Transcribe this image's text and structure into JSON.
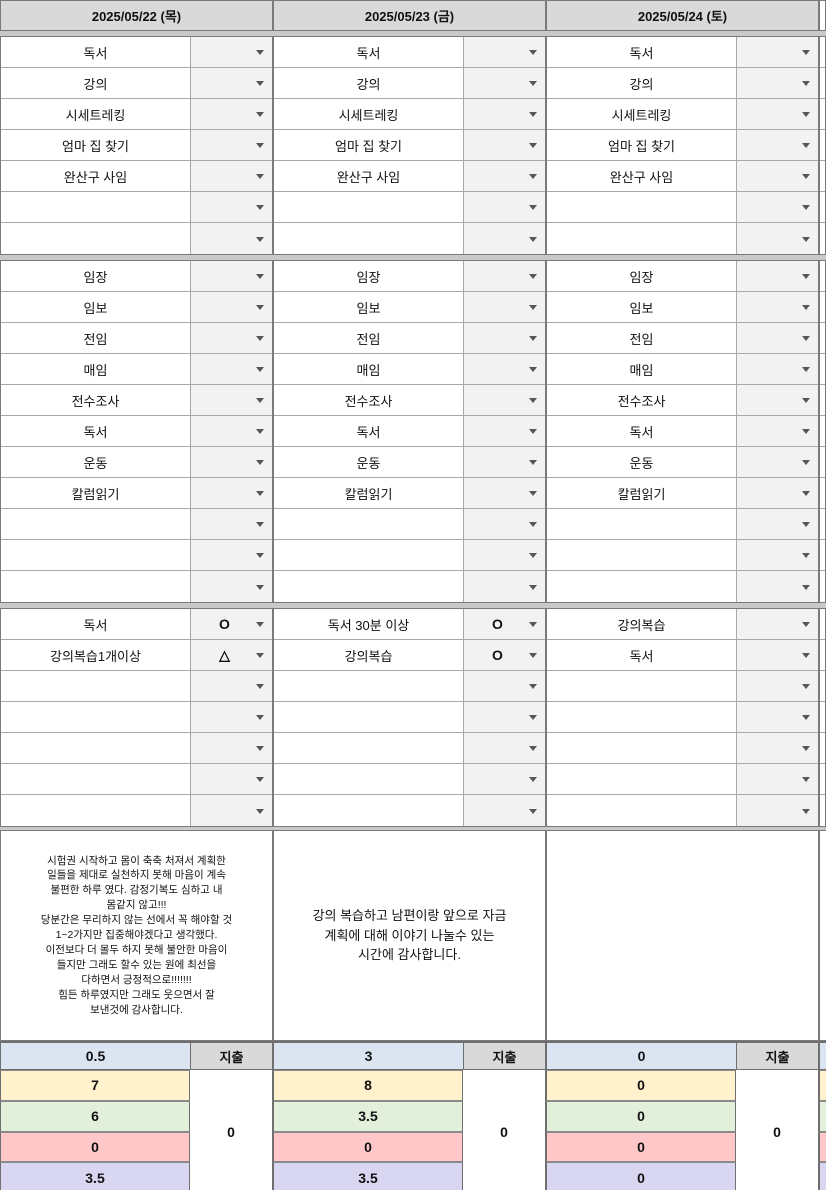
{
  "colors": {
    "header_bg": "#d9d9d9",
    "band": "#c9c9c9",
    "dropdown_bg": "#f2f2f2",
    "expense_header_bg": "#d9d9d9",
    "blue": "#dbe5f1",
    "yellow": "#fff2cc",
    "green": "#e2efda",
    "red": "#ffc7c7",
    "purple": "#d9d6f2"
  },
  "days": [
    {
      "date": "2025/05/22 (목)",
      "todo_items": [
        "독서",
        "강의",
        "시세트레킹",
        "엄마 집 찾기",
        "완산구 사임",
        "",
        ""
      ],
      "routine_items": [
        "임장",
        "임보",
        "전임",
        "매임",
        "전수조사",
        "독서",
        "운동",
        "칼럼읽기",
        "",
        "",
        ""
      ],
      "goal_items": [
        {
          "label": "독서",
          "status": "O"
        },
        {
          "label": "강의복습1개이상",
          "status": "△"
        },
        {
          "label": "",
          "status": ""
        },
        {
          "label": "",
          "status": ""
        },
        {
          "label": "",
          "status": ""
        },
        {
          "label": "",
          "status": ""
        },
        {
          "label": "",
          "status": ""
        }
      ],
      "note": "시험권 시작하고 몸이 축축 처져서 계획한\n일들을 제대로 실천하지 못해 마음이 계속\n불편한 하루 였다. 감정기복도 심하고 내\n몸같지 않고!!!\n당분간은 무리하지 않는 선에서 꼭 해야할 것\n1~2가지만 집중해야겠다고 생각했다.\n이전보다 더 몰두 하지 못해 불안한 마음이\n들지만 그래도 할수 있는 원에 최선을\n다하면서 긍정적으로!!!!!!!\n힘든 하루였지만 그래도 웃으면서 잘\n보낸것에 감사합니다.",
      "scores": [
        {
          "color": "blue",
          "value": "0.5"
        },
        {
          "color": "yellow",
          "value": "7"
        },
        {
          "color": "green",
          "value": "6"
        },
        {
          "color": "red",
          "value": "0"
        },
        {
          "color": "purple",
          "value": "3.5"
        }
      ],
      "expense_label": "지출",
      "expense_value": "0"
    },
    {
      "date": "2025/05/23 (금)",
      "todo_items": [
        "독서",
        "강의",
        "시세트레킹",
        "엄마 집 찾기",
        "완산구 사임",
        "",
        ""
      ],
      "routine_items": [
        "임장",
        "임보",
        "전임",
        "매임",
        "전수조사",
        "독서",
        "운동",
        "칼럼읽기",
        "",
        "",
        ""
      ],
      "goal_items": [
        {
          "label": "독서 30분 이상",
          "status": "O"
        },
        {
          "label": "강의복습",
          "status": "O"
        },
        {
          "label": "",
          "status": ""
        },
        {
          "label": "",
          "status": ""
        },
        {
          "label": "",
          "status": ""
        },
        {
          "label": "",
          "status": ""
        },
        {
          "label": "",
          "status": ""
        }
      ],
      "note": "강의 복습하고 남편이랑 앞으로 자금\n계획에 대해 이야기 나눌수 있는\n시간에 감사합니다.",
      "scores": [
        {
          "color": "blue",
          "value": "3"
        },
        {
          "color": "yellow",
          "value": "8"
        },
        {
          "color": "green",
          "value": "3.5"
        },
        {
          "color": "red",
          "value": "0"
        },
        {
          "color": "purple",
          "value": "3.5"
        }
      ],
      "expense_label": "지출",
      "expense_value": "0"
    },
    {
      "date": "2025/05/24 (토)",
      "todo_items": [
        "독서",
        "강의",
        "시세트레킹",
        "엄마 집 찾기",
        "완산구 사임",
        "",
        ""
      ],
      "routine_items": [
        "임장",
        "임보",
        "전임",
        "매임",
        "전수조사",
        "독서",
        "운동",
        "칼럼읽기",
        "",
        "",
        ""
      ],
      "goal_items": [
        {
          "label": "강의복습",
          "status": ""
        },
        {
          "label": "독서",
          "status": ""
        },
        {
          "label": "",
          "status": ""
        },
        {
          "label": "",
          "status": ""
        },
        {
          "label": "",
          "status": ""
        },
        {
          "label": "",
          "status": ""
        },
        {
          "label": "",
          "status": ""
        }
      ],
      "note": "",
      "scores": [
        {
          "color": "blue",
          "value": "0"
        },
        {
          "color": "yellow",
          "value": "0"
        },
        {
          "color": "green",
          "value": "0"
        },
        {
          "color": "red",
          "value": "0"
        },
        {
          "color": "purple",
          "value": "0"
        }
      ],
      "expense_label": "지출",
      "expense_value": "0"
    }
  ]
}
